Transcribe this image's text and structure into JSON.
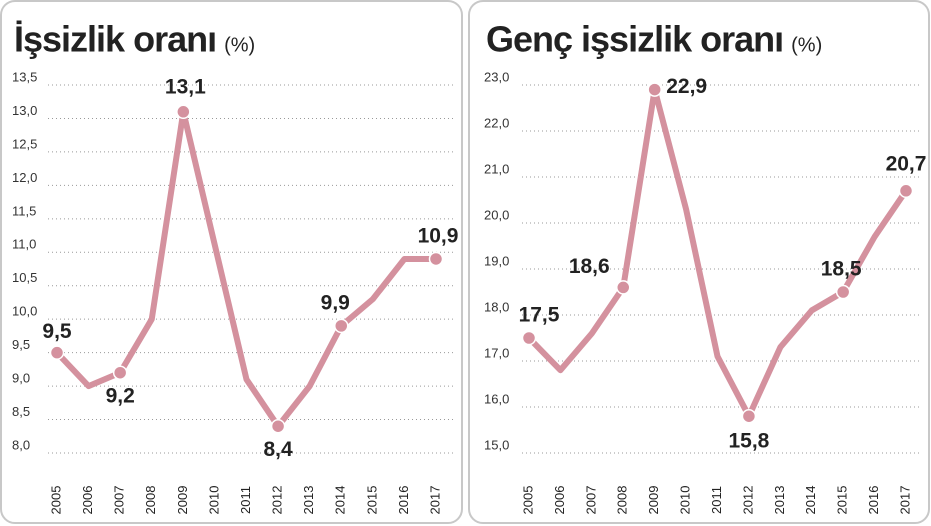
{
  "chart_data": [
    {
      "type": "line",
      "title": "İşsizlik oranı",
      "unit": "(%)",
      "categories": [
        "2005",
        "2006",
        "2007",
        "2008",
        "2009",
        "2010",
        "2011",
        "2012",
        "2013",
        "2014",
        "2015",
        "2016",
        "2017"
      ],
      "values": [
        9.5,
        9.0,
        9.2,
        10.0,
        13.1,
        11.1,
        9.1,
        8.4,
        9.0,
        9.9,
        10.3,
        10.9,
        10.9
      ],
      "value_labels": [
        "9,5",
        null,
        "9,2",
        null,
        "13,1",
        null,
        null,
        "8,4",
        null,
        "9,9",
        null,
        null,
        "10,9"
      ],
      "color": "#d4919e",
      "ylim": [
        8.0,
        13.5
      ],
      "yticks": [
        {
          "value": 8.0,
          "label": "8,0"
        },
        {
          "value": 8.5,
          "label": "8,5"
        },
        {
          "value": 9.0,
          "label": "9,0"
        },
        {
          "value": 9.5,
          "label": "9,5"
        },
        {
          "value": 10.0,
          "label": "10,0"
        },
        {
          "value": 10.5,
          "label": "10,5"
        },
        {
          "value": 11.0,
          "label": "11,0"
        },
        {
          "value": 11.5,
          "label": "11,5"
        },
        {
          "value": 12.0,
          "label": "12,0"
        },
        {
          "value": 12.5,
          "label": "12,5"
        },
        {
          "value": 13.0,
          "label": "13,0"
        },
        {
          "value": 13.5,
          "label": "13,5"
        }
      ],
      "grid": true
    },
    {
      "type": "line",
      "title": "Genç işsizlik oranı",
      "unit": "(%)",
      "categories": [
        "2005",
        "2006",
        "2007",
        "2008",
        "2009",
        "2010",
        "2011",
        "2012",
        "2013",
        "2014",
        "2015",
        "2016",
        "2017"
      ],
      "values": [
        17.5,
        16.8,
        17.6,
        18.6,
        22.9,
        20.3,
        17.1,
        15.8,
        17.3,
        18.1,
        18.5,
        19.7,
        20.7
      ],
      "value_labels": [
        "17,5",
        null,
        null,
        "18,6",
        "22,9",
        null,
        null,
        "15,8",
        null,
        null,
        "18,5",
        null,
        "20,7"
      ],
      "color": "#d4919e",
      "ylim": [
        15.0,
        23.0
      ],
      "yticks": [
        {
          "value": 15.0,
          "label": "15,0"
        },
        {
          "value": 16.0,
          "label": "16,0"
        },
        {
          "value": 17.0,
          "label": "17,0"
        },
        {
          "value": 18.0,
          "label": "18,0"
        },
        {
          "value": 19.0,
          "label": "19,0"
        },
        {
          "value": 20.0,
          "label": "20,0"
        },
        {
          "value": 21.0,
          "label": "21,0"
        },
        {
          "value": 22.0,
          "label": "22,0"
        },
        {
          "value": 23.0,
          "label": "23,0"
        }
      ],
      "grid": true
    }
  ]
}
